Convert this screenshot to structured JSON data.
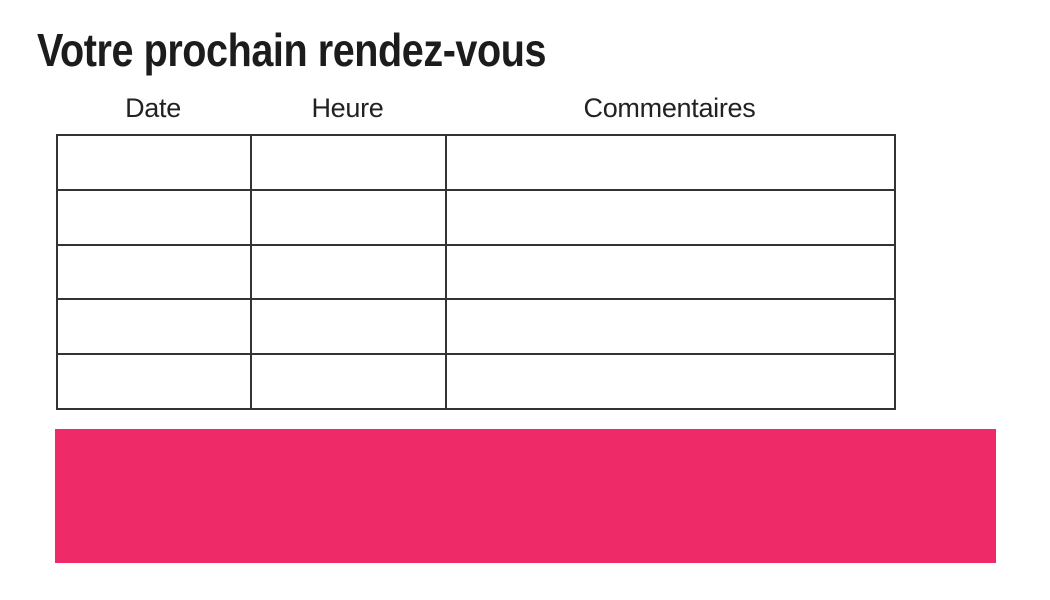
{
  "title": "Votre prochain rendez-vous",
  "table": {
    "headers": [
      "Date",
      "Heure",
      "Commentaires"
    ],
    "rows": [
      [
        "",
        "",
        ""
      ],
      [
        "",
        "",
        ""
      ],
      [
        "",
        "",
        ""
      ],
      [
        "",
        "",
        ""
      ],
      [
        "",
        "",
        ""
      ]
    ]
  },
  "banner": {
    "color": "#EE2A68"
  },
  "colors": {
    "table_border": "#333333",
    "title_text": "#1c1c1c",
    "background": "#ffffff"
  }
}
